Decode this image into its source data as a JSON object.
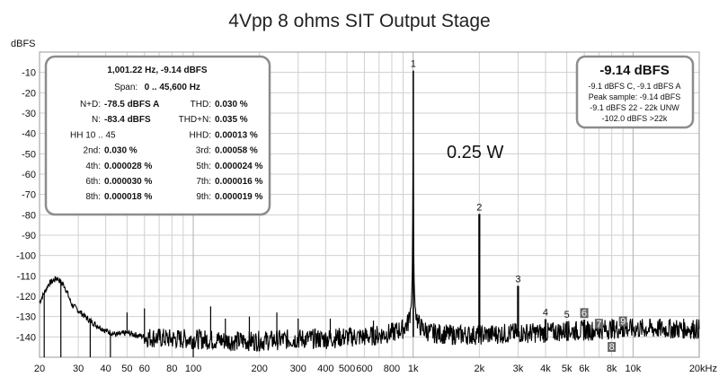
{
  "chart_data": {
    "type": "line",
    "title": "4Vpp 8 ohms SIT Output Stage",
    "ylabel": "dBFS",
    "xscale": "log",
    "xlim": [
      20,
      20000
    ],
    "ylim": [
      -150,
      0
    ],
    "grid": true,
    "x_ticks": [
      {
        "value": 20,
        "label": "20"
      },
      {
        "value": 30,
        "label": "30"
      },
      {
        "value": 40,
        "label": "40"
      },
      {
        "value": 50,
        "label": "50"
      },
      {
        "value": 60,
        "label": "60"
      },
      {
        "value": 80,
        "label": "80"
      },
      {
        "value": 100,
        "label": "100"
      },
      {
        "value": 200,
        "label": "200"
      },
      {
        "value": 300,
        "label": "300"
      },
      {
        "value": 400,
        "label": "400"
      },
      {
        "value": 500,
        "label": "500"
      },
      {
        "value": 600,
        "label": "600"
      },
      {
        "value": 800,
        "label": "800"
      },
      {
        "value": 1000,
        "label": "1k"
      },
      {
        "value": 2000,
        "label": "2k"
      },
      {
        "value": 3000,
        "label": "3k"
      },
      {
        "value": 4000,
        "label": "4k"
      },
      {
        "value": 5000,
        "label": "5k"
      },
      {
        "value": 6000,
        "label": "6k"
      },
      {
        "value": 8000,
        "label": "8k"
      },
      {
        "value": 10000,
        "label": "10k"
      },
      {
        "value": 20000,
        "label": "20kHz"
      }
    ],
    "y_ticks": [
      {
        "value": -10,
        "label": "-10"
      },
      {
        "value": -20,
        "label": "-20"
      },
      {
        "value": -30,
        "label": "-30"
      },
      {
        "value": -40,
        "label": "-40"
      },
      {
        "value": -50,
        "label": "-50"
      },
      {
        "value": -60,
        "label": "-60"
      },
      {
        "value": -70,
        "label": "-70"
      },
      {
        "value": -80,
        "label": "-80"
      },
      {
        "value": -90,
        "label": "-90"
      },
      {
        "value": -100,
        "label": "-100"
      },
      {
        "value": -110,
        "label": "-110"
      },
      {
        "value": -120,
        "label": "-120"
      },
      {
        "value": -130,
        "label": "-130"
      },
      {
        "value": -140,
        "label": "-140"
      }
    ],
    "noise_floor": [
      [
        20,
        -123
      ],
      [
        22,
        -114
      ],
      [
        24,
        -111
      ],
      [
        26,
        -115
      ],
      [
        28,
        -124
      ],
      [
        30,
        -127
      ],
      [
        33,
        -131
      ],
      [
        36,
        -134
      ],
      [
        40,
        -137
      ],
      [
        45,
        -139
      ],
      [
        50,
        -138
      ],
      [
        60,
        -140
      ],
      [
        80,
        -141
      ],
      [
        100,
        -141
      ],
      [
        150,
        -142
      ],
      [
        200,
        -142
      ],
      [
        300,
        -141
      ],
      [
        400,
        -141
      ],
      [
        500,
        -140
      ],
      [
        600,
        -140
      ],
      [
        700,
        -139
      ],
      [
        800,
        -138
      ],
      [
        900,
        -136
      ],
      [
        950,
        -133
      ],
      [
        980,
        -125
      ],
      [
        990,
        -112
      ],
      [
        995,
        -95
      ],
      [
        1000,
        -9.14
      ],
      [
        1005,
        -95
      ],
      [
        1010,
        -112
      ],
      [
        1020,
        -125
      ],
      [
        1050,
        -133
      ],
      [
        1100,
        -136
      ],
      [
        1200,
        -138
      ],
      [
        1500,
        -139
      ],
      [
        2000,
        -139
      ],
      [
        3000,
        -138
      ],
      [
        4000,
        -138
      ],
      [
        5000,
        -137
      ],
      [
        6000,
        -137
      ],
      [
        8000,
        -136
      ],
      [
        10000,
        -136
      ],
      [
        12000,
        -136
      ],
      [
        15000,
        -136
      ],
      [
        20000,
        -136
      ]
    ],
    "harmonics": [
      {
        "label": "1",
        "freq": 1001.22,
        "level": -9.14
      },
      {
        "label": "2",
        "freq": 2000,
        "level": -79.6
      },
      {
        "label": "3",
        "freq": 3000,
        "level": -114.9
      },
      {
        "label": "4",
        "freq": 4000,
        "level": -131.3
      },
      {
        "label": "5",
        "freq": 5000,
        "level": -132.4
      },
      {
        "label": "6",
        "freq": 6000,
        "level": -131.6
      },
      {
        "label": "7",
        "freq": 7000,
        "level": -136.0
      },
      {
        "label": "8",
        "freq": 8000,
        "level": -135.0
      },
      {
        "label": "9",
        "freq": 9000,
        "level": -134.8
      }
    ],
    "spurs": [
      {
        "freq": 21,
        "level": -150
      },
      {
        "freq": 25,
        "level": -150
      },
      {
        "freq": 34,
        "level": -150
      },
      {
        "freq": 42,
        "level": -150
      },
      {
        "freq": 50,
        "level": -128
      },
      {
        "freq": 60,
        "level": -126
      },
      {
        "freq": 100,
        "level": -150
      },
      {
        "freq": 120,
        "level": -125
      },
      {
        "freq": 140,
        "level": -131
      },
      {
        "freq": 180,
        "level": -130
      },
      {
        "freq": 240,
        "level": -128
      },
      {
        "freq": 300,
        "level": -131
      },
      {
        "freq": 420,
        "level": -131
      },
      {
        "freq": 660,
        "level": -132
      }
    ],
    "annotation": "0.25 W",
    "info_box": {
      "title": "1,001.22 Hz, -9.14 dBFS",
      "span_label": "Span:",
      "span_value": "0 .. 45,600 Hz",
      "rows": [
        [
          {
            "label": "N+D:",
            "value": "-78.5 dBFS A"
          },
          {
            "label": "THD:",
            "value": "0.030 %"
          }
        ],
        [
          {
            "label": "N:",
            "value": "-83.4 dBFS"
          },
          {
            "label": "THD+N:",
            "value": "0.035 %"
          }
        ],
        [
          {
            "label": "HH 10 .. 45",
            "value": ""
          },
          {
            "label": "HHD:",
            "value": "0.00013 %"
          }
        ],
        [
          {
            "label": "2nd:",
            "value": "0.030 %"
          },
          {
            "label": "3rd:",
            "value": "0.00058 %"
          }
        ],
        [
          {
            "label": "4th:",
            "value": "0.000028 %"
          },
          {
            "label": "5th:",
            "value": "0.000024 %"
          }
        ],
        [
          {
            "label": "6th:",
            "value": "0.000030 %"
          },
          {
            "label": "7th:",
            "value": "0.000016 %"
          }
        ],
        [
          {
            "label": "8th:",
            "value": "0.000018 %"
          },
          {
            "label": "9th:",
            "value": "0.000019 %"
          }
        ]
      ]
    },
    "level_box": {
      "big": "-9.14 dBFS",
      "lines": [
        "-9.1 dBFS C, -9.1 dBFS A",
        "Peak sample: -9.14 dBFS",
        "-9.1 dBFS 22 - 22k UNW",
        "-102.0 dBFS >22k"
      ]
    },
    "colors": {
      "trace": "#000000",
      "grid": "#d0d0d0",
      "box_border": "#8c8c8c",
      "label_badge": "#666666"
    }
  }
}
